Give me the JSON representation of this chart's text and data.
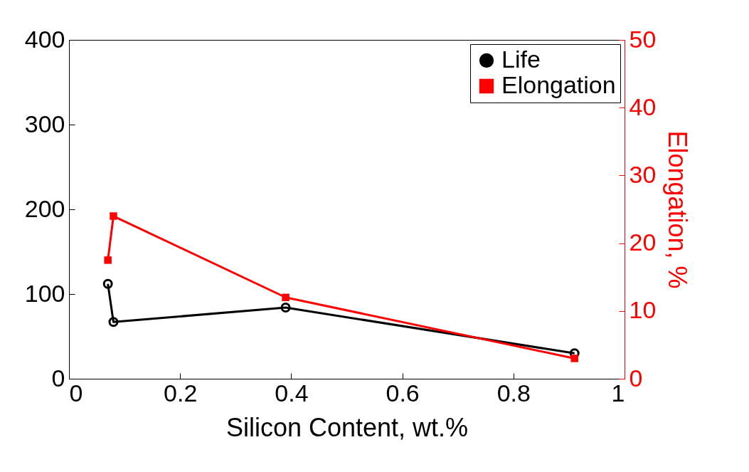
{
  "chart_data": {
    "type": "line",
    "xlabel": "Silicon Content, wt.%",
    "y2label": "Elongation, %",
    "x": [
      0.07,
      0.08,
      0.39,
      0.91
    ],
    "series": [
      {
        "name": "Life",
        "color": "#000000",
        "marker": "circle",
        "values": [
          112,
          67,
          84,
          30
        ]
      },
      {
        "name": "Elongation",
        "color": "#ff0000",
        "marker": "square",
        "axis": "y2",
        "values": [
          17.5,
          24,
          12,
          3
        ]
      }
    ],
    "xlim": [
      0,
      1
    ],
    "xticks": [
      0,
      0.2,
      0.4,
      0.6,
      0.8,
      1
    ],
    "ylim": [
      0,
      400
    ],
    "yticks": [
      0,
      100,
      200,
      300,
      400
    ],
    "y2lim": [
      0,
      50
    ],
    "y2ticks": [
      0,
      10,
      20,
      30,
      40,
      50
    ],
    "legend": "top right",
    "grid": false,
    "line_style": "solid"
  }
}
